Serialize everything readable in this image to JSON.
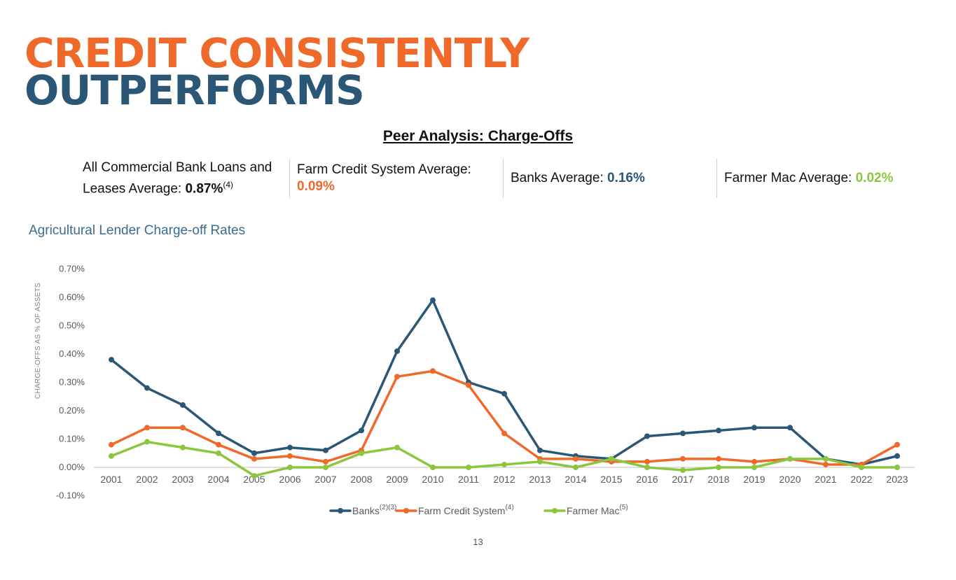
{
  "slide": {
    "title_line1": "CREDIT CONSISTENTLY",
    "title_line2": "OUTPERFORMS",
    "subtitle": "Peer Analysis: Charge-Offs",
    "page_number": "13"
  },
  "stats": [
    {
      "label": "All Commercial Bank Loans and Leases Average: ",
      "value": "0.87%",
      "note": "(4)",
      "color": "#111111"
    },
    {
      "label": "Farm Credit System Average: ",
      "value": "0.09%",
      "note": "",
      "color": "#EF6A2A"
    },
    {
      "label": "Banks Average: ",
      "value": "0.16%",
      "note": "",
      "color": "#2B5777"
    },
    {
      "label": "Farmer Mac Average: ",
      "value": "0.02%",
      "note": "",
      "color": "#8CC63F"
    }
  ],
  "chart_data": {
    "type": "line",
    "title": "Agricultural Lender Charge-off Rates",
    "ylabel": "CHARGE-OFFS AS % OF ASSETS",
    "xlabel": "",
    "categories": [
      "2001",
      "2002",
      "2003",
      "2004",
      "2005",
      "2006",
      "2007",
      "2008",
      "2009",
      "2010",
      "2011",
      "2012",
      "2013",
      "2014",
      "2015",
      "2016",
      "2017",
      "2018",
      "2019",
      "2020",
      "2021",
      "2022",
      "2023"
    ],
    "ylim": [
      -0.1,
      0.7
    ],
    "yticks": [
      -0.1,
      0.0,
      0.1,
      0.2,
      0.3,
      0.4,
      0.5,
      0.6,
      0.7
    ],
    "ytick_labels": [
      "-0.10%",
      "0.00%",
      "0.10%",
      "0.20%",
      "0.30%",
      "0.40%",
      "0.50%",
      "0.60%",
      "0.70%"
    ],
    "grid": false,
    "legend_position": "bottom-center",
    "series": [
      {
        "name": "Banks",
        "note": "(2)(3)",
        "color": "#2B5777",
        "values": [
          0.38,
          0.28,
          0.22,
          0.12,
          0.05,
          0.07,
          0.06,
          0.13,
          0.41,
          0.59,
          0.3,
          0.26,
          0.06,
          0.04,
          0.03,
          0.11,
          0.12,
          0.13,
          0.14,
          0.14,
          0.03,
          0.01,
          0.04
        ]
      },
      {
        "name": "Farm Credit System",
        "note": "(4)",
        "color": "#EF6A2A",
        "values": [
          0.08,
          0.14,
          0.14,
          0.08,
          0.03,
          0.04,
          0.02,
          0.06,
          0.32,
          0.34,
          0.29,
          0.12,
          0.03,
          0.03,
          0.02,
          0.02,
          0.03,
          0.03,
          0.02,
          0.03,
          0.01,
          0.01,
          0.08
        ]
      },
      {
        "name": "Farmer Mac",
        "note": "(5)",
        "color": "#8CC63F",
        "values": [
          0.04,
          0.09,
          0.07,
          0.05,
          -0.03,
          0.0,
          0.0,
          0.05,
          0.07,
          0.0,
          0.0,
          0.01,
          0.02,
          0.0,
          0.03,
          0.0,
          -0.01,
          0.0,
          0.0,
          0.03,
          0.03,
          0.0,
          0.0
        ]
      }
    ]
  }
}
